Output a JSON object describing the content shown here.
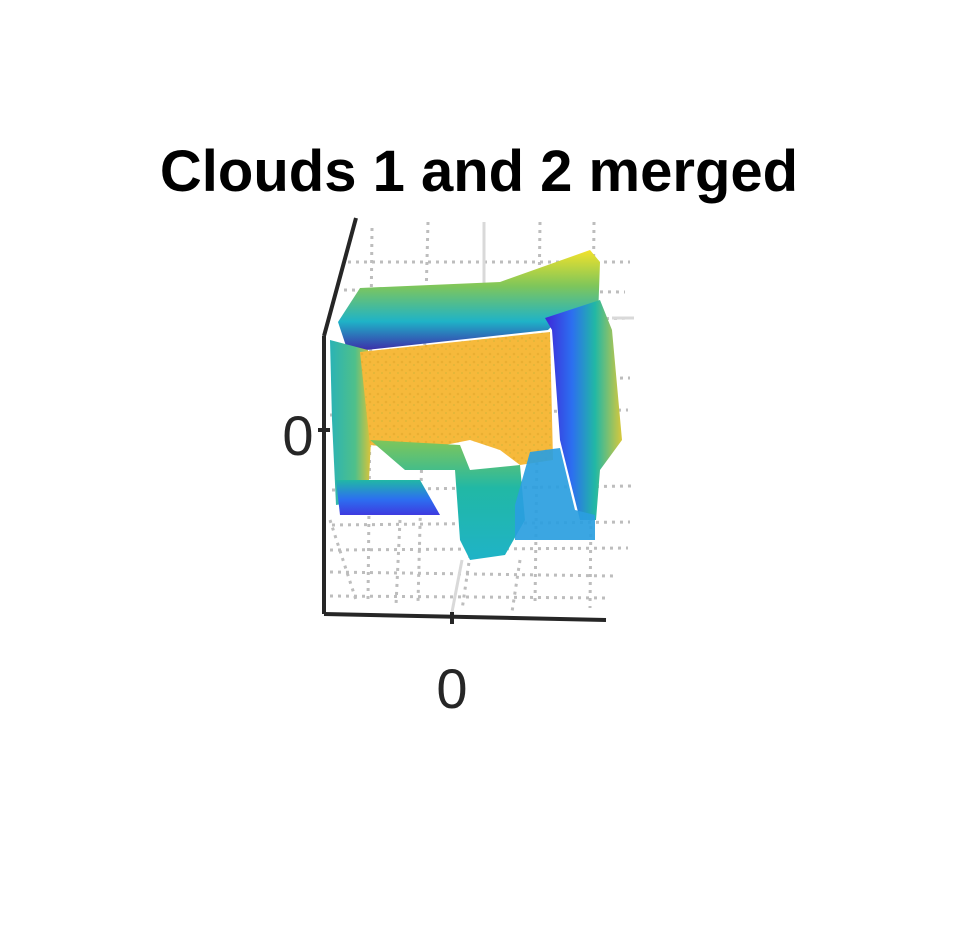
{
  "chart_data": {
    "type": "scatter",
    "subtype": "3d-point-cloud",
    "title": "Clouds 1 and 2 merged",
    "xlabel": "",
    "ylabel": "",
    "x_ticks": [
      "0"
    ],
    "y_ticks": [
      "0"
    ],
    "grid": true,
    "grid_style": "dotted",
    "colormap": "parula",
    "colormap_colors": [
      "#3e26a8",
      "#2c5ff1",
      "#1a9bd7",
      "#21b8a5",
      "#7fc65a",
      "#e7bb31",
      "#f6c43a",
      "#f3e22a"
    ],
    "colors": {
      "axis": "#262626",
      "grid": "#bdbdbd",
      "floor": "#f6b93b",
      "wall_base": "#3a3ae6",
      "wall_top": "#f0cf2e",
      "fixture": "#2a9ee0"
    }
  }
}
